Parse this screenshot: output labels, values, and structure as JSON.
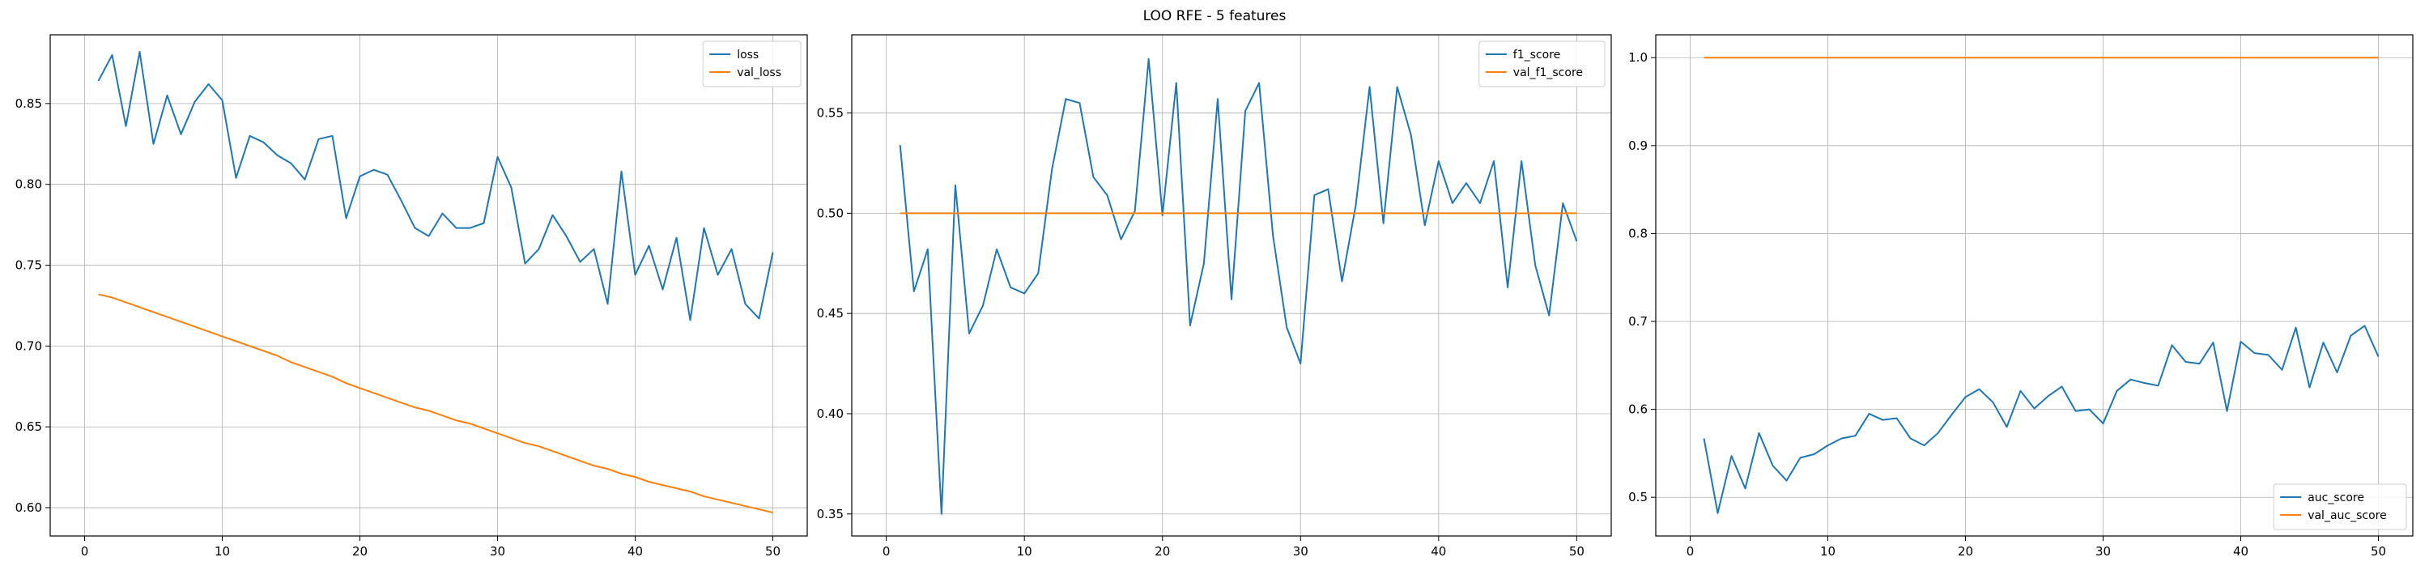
{
  "figure": {
    "title": "LOO RFE - 5 features"
  },
  "colors": {
    "series1": "#1f77b4",
    "series2": "#ff7f0e",
    "grid": "#b0b0b0",
    "axis": "#000000"
  },
  "chart_data": [
    {
      "type": "line",
      "title": "",
      "xlabel": "",
      "ylabel": "",
      "grid": true,
      "legend_position": "top-right",
      "xlim": [
        -2.5,
        52.5
      ],
      "ylim": [
        0.5825,
        0.8925
      ],
      "xticks": [
        0,
        10,
        20,
        30,
        40,
        50
      ],
      "yticks": [
        0.6,
        0.65,
        0.7,
        0.75,
        0.8,
        0.85
      ],
      "ytick_labels": [
        "0.60",
        "0.65",
        "0.70",
        "0.75",
        "0.80",
        "0.85"
      ],
      "x": [
        1,
        2,
        3,
        4,
        5,
        6,
        7,
        8,
        9,
        10,
        11,
        12,
        13,
        14,
        15,
        16,
        17,
        18,
        19,
        20,
        21,
        22,
        23,
        24,
        25,
        26,
        27,
        28,
        29,
        30,
        31,
        32,
        33,
        34,
        35,
        36,
        37,
        38,
        39,
        40,
        41,
        42,
        43,
        44,
        45,
        46,
        47,
        48,
        49,
        50
      ],
      "series": [
        {
          "name": "loss",
          "values": [
            0.864,
            0.88,
            0.836,
            0.882,
            0.825,
            0.855,
            0.831,
            0.851,
            0.862,
            0.852,
            0.804,
            0.83,
            0.826,
            0.818,
            0.813,
            0.803,
            0.828,
            0.83,
            0.779,
            0.805,
            0.809,
            0.806,
            0.79,
            0.773,
            0.768,
            0.782,
            0.773,
            0.773,
            0.776,
            0.817,
            0.798,
            0.751,
            0.76,
            0.781,
            0.768,
            0.752,
            0.76,
            0.726,
            0.808,
            0.744,
            0.762,
            0.735,
            0.767,
            0.716,
            0.773,
            0.744,
            0.76,
            0.726,
            0.717,
            0.758
          ]
        },
        {
          "name": "val_loss",
          "values": [
            0.732,
            0.73,
            0.727,
            0.724,
            0.721,
            0.718,
            0.715,
            0.712,
            0.709,
            0.706,
            0.703,
            0.7,
            0.697,
            0.694,
            0.69,
            0.687,
            0.684,
            0.681,
            0.677,
            0.674,
            0.671,
            0.668,
            0.665,
            0.662,
            0.66,
            0.657,
            0.654,
            0.652,
            0.649,
            0.646,
            0.643,
            0.64,
            0.638,
            0.635,
            0.632,
            0.629,
            0.626,
            0.624,
            0.621,
            0.619,
            0.616,
            0.614,
            0.612,
            0.61,
            0.607,
            0.605,
            0.603,
            0.601,
            0.599,
            0.597
          ]
        }
      ]
    },
    {
      "type": "line",
      "title": "",
      "xlabel": "",
      "ylabel": "",
      "grid": true,
      "legend_position": "top-right",
      "xlim": [
        -2.5,
        52.5
      ],
      "ylim": [
        0.339,
        0.589
      ],
      "xticks": [
        0,
        10,
        20,
        30,
        40,
        50
      ],
      "yticks": [
        0.35,
        0.4,
        0.45,
        0.5,
        0.55
      ],
      "ytick_labels": [
        "0.35",
        "0.40",
        "0.45",
        "0.50",
        "0.55"
      ],
      "x": [
        1,
        2,
        3,
        4,
        5,
        6,
        7,
        8,
        9,
        10,
        11,
        12,
        13,
        14,
        15,
        16,
        17,
        18,
        19,
        20,
        21,
        22,
        23,
        24,
        25,
        26,
        27,
        28,
        29,
        30,
        31,
        32,
        33,
        34,
        35,
        36,
        37,
        38,
        39,
        40,
        41,
        42,
        43,
        44,
        45,
        46,
        47,
        48,
        49,
        50
      ],
      "series": [
        {
          "name": "f1_score",
          "values": [
            0.534,
            0.461,
            0.482,
            0.35,
            0.514,
            0.44,
            0.454,
            0.482,
            0.463,
            0.46,
            0.47,
            0.522,
            0.557,
            0.555,
            0.518,
            0.509,
            0.487,
            0.501,
            0.577,
            0.499,
            0.565,
            0.444,
            0.475,
            0.557,
            0.457,
            0.551,
            0.565,
            0.489,
            0.443,
            0.425,
            0.509,
            0.512,
            0.466,
            0.504,
            0.563,
            0.495,
            0.563,
            0.539,
            0.494,
            0.526,
            0.505,
            0.515,
            0.505,
            0.526,
            0.463,
            0.526,
            0.474,
            0.449,
            0.505,
            0.486
          ]
        },
        {
          "name": "val_f1_score",
          "values": [
            0.5,
            0.5,
            0.5,
            0.5,
            0.5,
            0.5,
            0.5,
            0.5,
            0.5,
            0.5,
            0.5,
            0.5,
            0.5,
            0.5,
            0.5,
            0.5,
            0.5,
            0.5,
            0.5,
            0.5,
            0.5,
            0.5,
            0.5,
            0.5,
            0.5,
            0.5,
            0.5,
            0.5,
            0.5,
            0.5,
            0.5,
            0.5,
            0.5,
            0.5,
            0.5,
            0.5,
            0.5,
            0.5,
            0.5,
            0.5,
            0.5,
            0.5,
            0.5,
            0.5,
            0.5,
            0.5,
            0.5,
            0.5,
            0.5,
            0.5
          ]
        }
      ]
    },
    {
      "type": "line",
      "title": "",
      "xlabel": "",
      "ylabel": "",
      "grid": true,
      "legend_position": "bottom-right",
      "xlim": [
        -2.5,
        52.5
      ],
      "ylim": [
        0.456,
        1.026
      ],
      "xticks": [
        0,
        10,
        20,
        30,
        40,
        50
      ],
      "yticks": [
        0.5,
        0.6,
        0.7,
        0.8,
        0.9,
        1.0
      ],
      "ytick_labels": [
        "0.5",
        "0.6",
        "0.7",
        "0.8",
        "0.9",
        "1.0"
      ],
      "x": [
        1,
        2,
        3,
        4,
        5,
        6,
        7,
        8,
        9,
        10,
        11,
        12,
        13,
        14,
        15,
        16,
        17,
        18,
        19,
        20,
        21,
        22,
        23,
        24,
        25,
        26,
        27,
        28,
        29,
        30,
        31,
        32,
        33,
        34,
        35,
        36,
        37,
        38,
        39,
        40,
        41,
        42,
        43,
        44,
        45,
        46,
        47,
        48,
        49,
        50
      ],
      "series": [
        {
          "name": "auc_score",
          "values": [
            0.567,
            0.482,
            0.547,
            0.51,
            0.573,
            0.536,
            0.519,
            0.545,
            0.549,
            0.559,
            0.567,
            0.57,
            0.595,
            0.588,
            0.59,
            0.567,
            0.559,
            0.573,
            0.594,
            0.614,
            0.623,
            0.608,
            0.58,
            0.621,
            0.601,
            0.615,
            0.626,
            0.598,
            0.6,
            0.584,
            0.621,
            0.634,
            0.63,
            0.627,
            0.673,
            0.654,
            0.652,
            0.676,
            0.598,
            0.677,
            0.664,
            0.662,
            0.645,
            0.693,
            0.625,
            0.676,
            0.642,
            0.684,
            0.695,
            0.66
          ]
        },
        {
          "name": "val_auc_score",
          "values": [
            1.0,
            1.0,
            1.0,
            1.0,
            1.0,
            1.0,
            1.0,
            1.0,
            1.0,
            1.0,
            1.0,
            1.0,
            1.0,
            1.0,
            1.0,
            1.0,
            1.0,
            1.0,
            1.0,
            1.0,
            1.0,
            1.0,
            1.0,
            1.0,
            1.0,
            1.0,
            1.0,
            1.0,
            1.0,
            1.0,
            1.0,
            1.0,
            1.0,
            1.0,
            1.0,
            1.0,
            1.0,
            1.0,
            1.0,
            1.0,
            1.0,
            1.0,
            1.0,
            1.0,
            1.0,
            1.0,
            1.0,
            1.0,
            1.0,
            1.0
          ]
        }
      ]
    }
  ]
}
